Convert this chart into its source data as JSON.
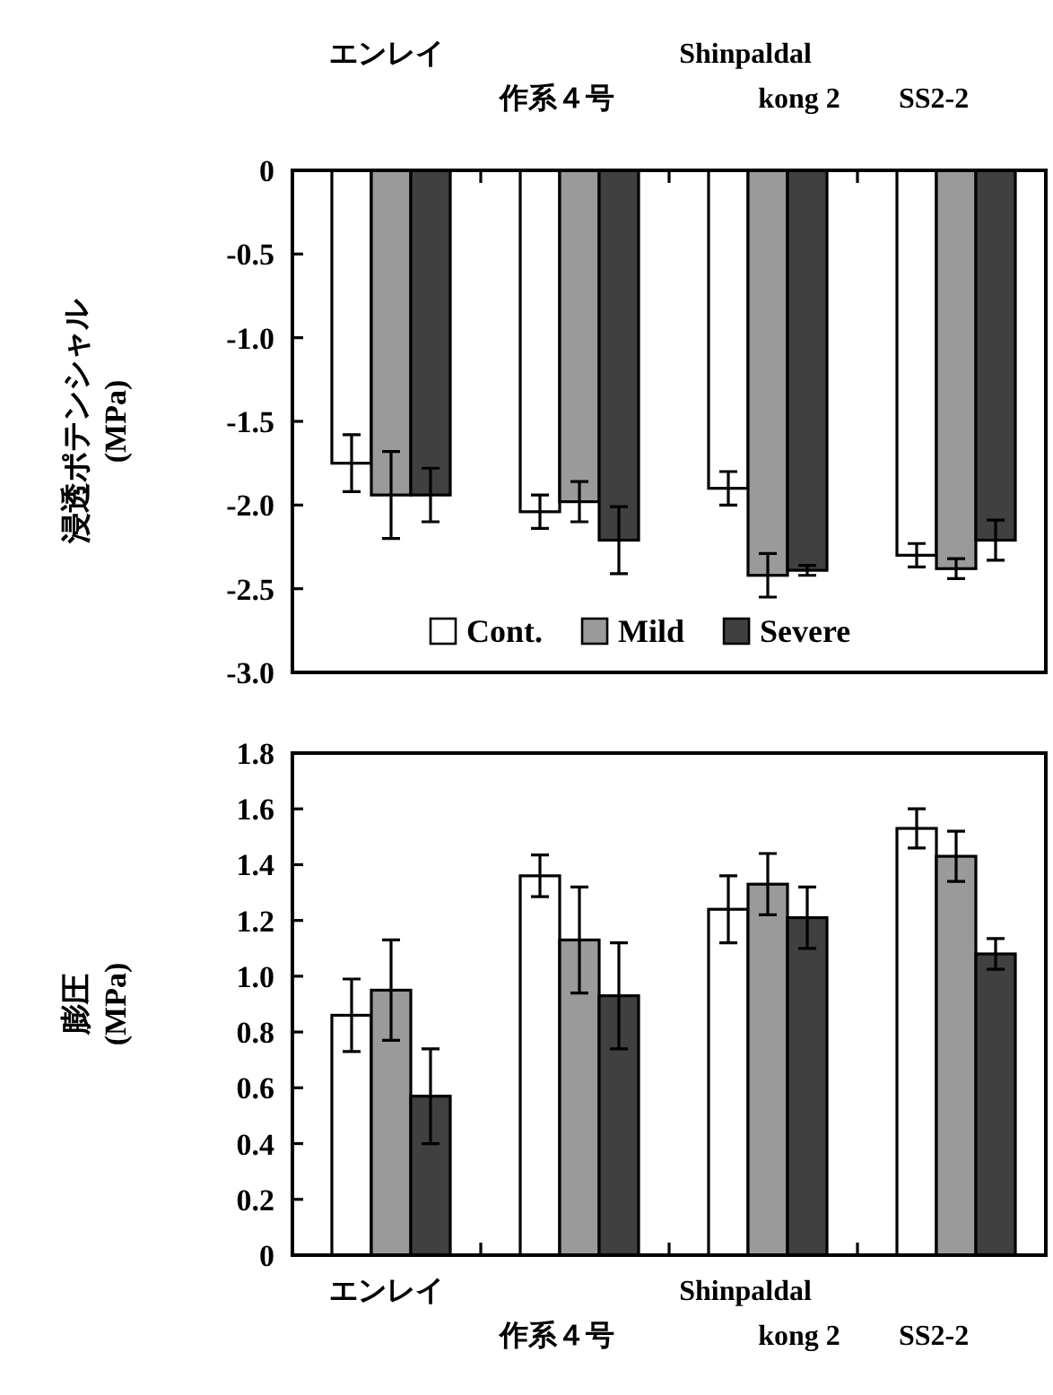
{
  "chart_data": [
    {
      "type": "bar",
      "ylabel": "浸透ポテンシャル (MPa)",
      "categories": [
        "エンレイ",
        "作系４号",
        "Shinpaldal kong 2",
        "SS2-2"
      ],
      "ylim": [
        -3.0,
        0
      ],
      "yticks": [
        0,
        -0.5,
        {
          "value": -1,
          "label": "-1.0"
        },
        -1.5,
        {
          "value": -2,
          "label": "-2.0"
        },
        -2.5,
        {
          "value": -3,
          "label": "-3.0"
        }
      ],
      "legend": "bottom",
      "grid": false,
      "series": [
        {
          "name": "Cont.",
          "color": "#ffffff",
          "values": [
            -1.75,
            -2.04,
            -1.9,
            -2.3
          ],
          "errors": [
            0.17,
            0.1,
            0.1,
            0.07
          ]
        },
        {
          "name": "Mild",
          "color": "#9a9a9a",
          "values": [
            -1.94,
            -1.98,
            -2.42,
            -2.38
          ],
          "errors": [
            0.26,
            0.12,
            0.13,
            0.06
          ]
        },
        {
          "name": "Severe",
          "color": "#404040",
          "values": [
            -1.94,
            -2.21,
            -2.39,
            -2.21
          ],
          "errors": [
            0.16,
            0.2,
            0.03,
            0.12
          ]
        }
      ]
    },
    {
      "type": "bar",
      "ylabel": "膨圧 (MPa)",
      "categories": [
        "エンレイ",
        "作系４号",
        "Shinpaldal kong 2",
        "SS2-2"
      ],
      "ylim": [
        0,
        1.8
      ],
      "yticks": [
        0,
        0.2,
        0.4,
        0.6,
        0.8,
        {
          "value": 1,
          "label": "1.0"
        },
        1.2,
        1.4,
        1.6,
        1.8
      ],
      "grid": false,
      "series": [
        {
          "color": "#ffffff",
          "values": [
            0.86,
            1.36,
            1.24,
            1.53
          ],
          "errors": [
            0.13,
            0.075,
            0.12,
            0.07
          ]
        },
        {
          "color": "#9a9a9a",
          "values": [
            0.95,
            1.13,
            1.33,
            1.43
          ],
          "errors": [
            0.18,
            0.19,
            0.11,
            0.09
          ]
        },
        {
          "color": "#404040",
          "values": [
            0.57,
            0.93,
            1.21,
            1.08
          ],
          "errors": [
            0.17,
            0.19,
            0.11,
            0.055
          ]
        }
      ]
    }
  ]
}
